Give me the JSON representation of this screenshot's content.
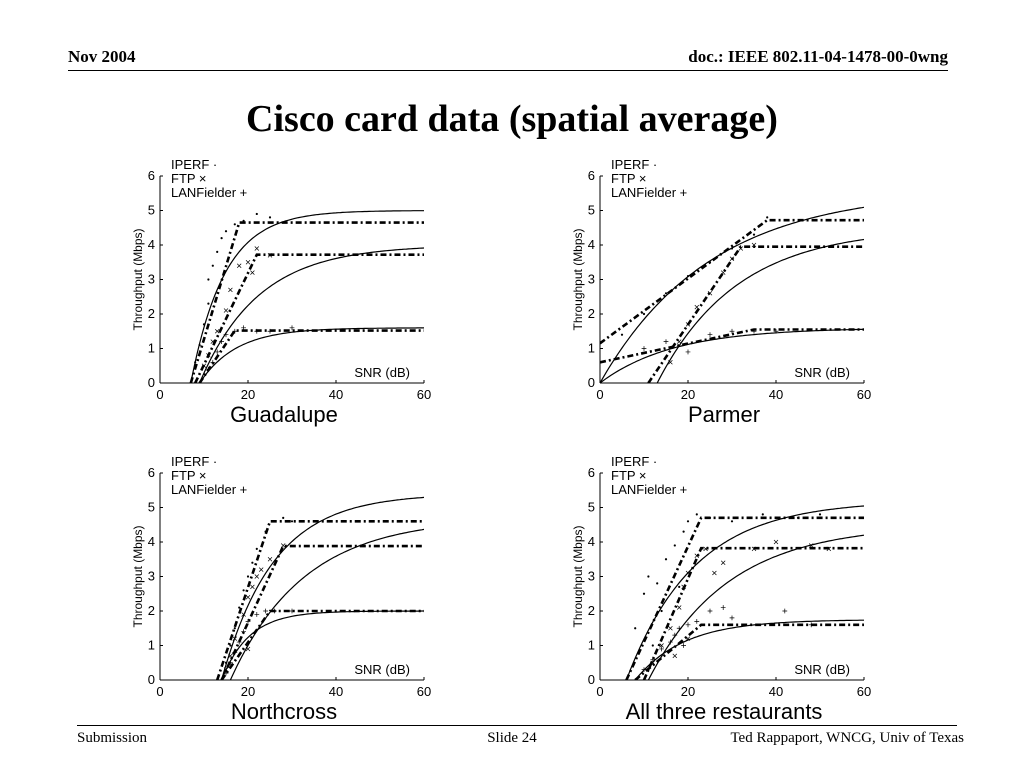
{
  "header": {
    "date": "Nov 2004",
    "doc": "doc.: IEEE 802.11-04-1478-00-0wng"
  },
  "title": "Cisco card data (spatial average)",
  "footer": {
    "left": "Submission",
    "center": "Slide 24",
    "right": "Ted Rappaport, WNCG, Univ of Texas"
  },
  "chart_data": [
    {
      "type": "scatter",
      "caption": "Guadalupe",
      "ylabel": "Throughput (Mbps)",
      "xlabel_inside": "SNR (dB)",
      "xlim": [
        0,
        60
      ],
      "ylim": [
        0,
        6
      ],
      "xticks": [
        "0",
        "20",
        "40",
        "60"
      ],
      "yticks": [
        "0",
        "1",
        "2",
        "3",
        "4",
        "5",
        "6"
      ],
      "legend": [
        "IPERF ·",
        "FTP ×",
        "LANFielder +"
      ],
      "series": [
        {
          "marker": "dot",
          "points": [
            [
              8,
              0.6
            ],
            [
              9,
              1.1
            ],
            [
              10,
              1.7
            ],
            [
              11,
              2.3
            ],
            [
              11,
              3
            ],
            [
              12,
              3.4
            ],
            [
              13,
              3.8
            ],
            [
              14,
              4.2
            ],
            [
              15,
              4.4
            ],
            [
              17,
              4.6
            ],
            [
              19,
              4.7
            ],
            [
              22,
              4.9
            ],
            [
              25,
              4.8
            ]
          ],
          "fit_exp": {
            "a": 5.0,
            "x0": 7,
            "k": 0.13
          },
          "piecewise": [
            [
              7,
              0
            ],
            [
              18,
              4.65
            ],
            [
              60,
              4.65
            ]
          ]
        },
        {
          "marker": "x",
          "points": [
            [
              10,
              0.5
            ],
            [
              11,
              0.8
            ],
            [
              12,
              1.2
            ],
            [
              13,
              1.5
            ],
            [
              15,
              2.1
            ],
            [
              16,
              2.7
            ],
            [
              18,
              3.4
            ],
            [
              20,
              3.5
            ],
            [
              21,
              3.2
            ],
            [
              22,
              3.9
            ],
            [
              25,
              3.7
            ]
          ],
          "fit_exp": {
            "a": 4.0,
            "x0": 9,
            "k": 0.075
          },
          "piecewise": [
            [
              8,
              0
            ],
            [
              22,
              3.72
            ],
            [
              60,
              3.72
            ]
          ]
        },
        {
          "marker": "plus",
          "points": [
            [
              11,
              0.4
            ],
            [
              12,
              0.6
            ],
            [
              13,
              0.9
            ],
            [
              14,
              1.2
            ],
            [
              15,
              1.4
            ],
            [
              17,
              1.5
            ],
            [
              19,
              1.6
            ],
            [
              22,
              1.5
            ],
            [
              25,
              1.5
            ],
            [
              30,
              1.6
            ]
          ],
          "fit_exp": {
            "a": 1.6,
            "x0": 9,
            "k": 0.12
          },
          "piecewise": [
            [
              9,
              0
            ],
            [
              17,
              1.52
            ],
            [
              60,
              1.52
            ]
          ]
        }
      ]
    },
    {
      "type": "scatter",
      "caption": "Parmer",
      "ylabel": "Throughput (Mbps)",
      "xlabel_inside": "SNR (dB)",
      "xlim": [
        0,
        60
      ],
      "ylim": [
        0,
        6
      ],
      "xticks": [
        "0",
        "20",
        "40",
        "60"
      ],
      "yticks": [
        "0",
        "1",
        "2",
        "3",
        "4",
        "5",
        "6"
      ],
      "legend": [
        "IPERF ·",
        "FTP ×",
        "LANFielder +"
      ],
      "series": [
        {
          "marker": "dot",
          "points": [
            [
              5,
              1.4
            ],
            [
              10,
              2
            ],
            [
              15,
              2.6
            ],
            [
              20,
              3.1
            ],
            [
              25,
              3.5
            ],
            [
              30,
              3.9
            ],
            [
              35,
              4.3
            ],
            [
              38,
              4.8
            ]
          ],
          "fit_exp": {
            "a": 5.6,
            "x0": 0,
            "k": 0.04
          },
          "piecewise": [
            [
              0,
              1.15
            ],
            [
              38,
              4.72
            ],
            [
              60,
              4.72
            ]
          ]
        },
        {
          "marker": "x",
          "points": [
            [
              16,
              0.6
            ],
            [
              18,
              1.2
            ],
            [
              20,
              1.7
            ],
            [
              22,
              2.2
            ],
            [
              25,
              2.6
            ],
            [
              28,
              3.2
            ],
            [
              30,
              3.6
            ],
            [
              32,
              3.9
            ],
            [
              35,
              4.0
            ]
          ],
          "fit_exp": {
            "a": 4.5,
            "x0": 13,
            "k": 0.055
          },
          "piecewise": [
            [
              11,
              0
            ],
            [
              32,
              3.95
            ],
            [
              60,
              3.95
            ]
          ]
        },
        {
          "marker": "plus",
          "points": [
            [
              10,
              1.0
            ],
            [
              15,
              1.2
            ],
            [
              20,
              0.9
            ],
            [
              25,
              1.4
            ],
            [
              30,
              1.5
            ],
            [
              35,
              1.5
            ],
            [
              40,
              1.5
            ]
          ],
          "fit_exp": {
            "a": 1.6,
            "x0": 0,
            "k": 0.06
          },
          "piecewise": [
            [
              0,
              0.6
            ],
            [
              35,
              1.55
            ],
            [
              60,
              1.55
            ]
          ]
        }
      ]
    },
    {
      "type": "scatter",
      "caption": "Northcross",
      "ylabel": "Throughput (Mbps)",
      "xlabel_inside": "SNR (dB)",
      "xlim": [
        0,
        60
      ],
      "ylim": [
        0,
        6
      ],
      "xticks": [
        "0",
        "20",
        "40",
        "60"
      ],
      "yticks": [
        "0",
        "1",
        "2",
        "3",
        "4",
        "5",
        "6"
      ],
      "legend": [
        "IPERF ·",
        "FTP ×",
        "LANFielder +"
      ],
      "series": [
        {
          "marker": "dot",
          "points": [
            [
              15,
              0.5
            ],
            [
              16,
              1.0
            ],
            [
              17,
              1.5
            ],
            [
              18,
              2.1
            ],
            [
              19,
              2.6
            ],
            [
              20,
              3.0
            ],
            [
              21,
              3.4
            ],
            [
              22,
              3.8
            ],
            [
              24,
              4.3
            ],
            [
              26,
              4.6
            ],
            [
              28,
              4.7
            ],
            [
              30,
              4.6
            ]
          ],
          "fit_exp": {
            "a": 5.4,
            "x0": 14,
            "k": 0.085
          },
          "piecewise": [
            [
              13,
              0
            ],
            [
              25,
              4.6
            ],
            [
              60,
              4.6
            ]
          ]
        },
        {
          "marker": "x",
          "points": [
            [
              15,
              0.3
            ],
            [
              16,
              0.7
            ],
            [
              17,
              1.2
            ],
            [
              19,
              1.9
            ],
            [
              20,
              2.4
            ],
            [
              21,
              2.7
            ],
            [
              22,
              3.0
            ],
            [
              23,
              3.2
            ],
            [
              25,
              3.5
            ],
            [
              28,
              3.9
            ],
            [
              20,
              0.9
            ]
          ],
          "fit_exp": {
            "a": 4.7,
            "x0": 16,
            "k": 0.06
          },
          "piecewise": [
            [
              14,
              0
            ],
            [
              28,
              3.88
            ],
            [
              60,
              3.88
            ]
          ]
        },
        {
          "marker": "plus",
          "points": [
            [
              15,
              0.2
            ],
            [
              16,
              0.5
            ],
            [
              17,
              0.8
            ],
            [
              18,
              1.1
            ],
            [
              19,
              1.4
            ],
            [
              20,
              1.7
            ],
            [
              22,
              1.9
            ],
            [
              24,
              2.0
            ],
            [
              26,
              2.0
            ],
            [
              30,
              2.0
            ]
          ],
          "fit_exp": {
            "a": 2.0,
            "x0": 14,
            "k": 0.16
          },
          "piecewise": [
            [
              14,
              0
            ],
            [
              25,
              2.0
            ],
            [
              60,
              2.0
            ]
          ]
        }
      ]
    },
    {
      "type": "scatter",
      "caption": "All three restaurants",
      "ylabel": "Throughput (Mbps)",
      "xlabel_inside": "SNR (dB)",
      "xlim": [
        0,
        60
      ],
      "ylim": [
        0,
        6
      ],
      "xticks": [
        "0",
        "20",
        "40",
        "60"
      ],
      "yticks": [
        "0",
        "1",
        "2",
        "3",
        "4",
        "5",
        "6"
      ],
      "legend": [
        "IPERF ·",
        "FTP ×",
        "LANFielder +"
      ],
      "series": [
        {
          "marker": "dot",
          "points": [
            [
              8,
              1.5
            ],
            [
              10,
              2.5
            ],
            [
              11,
              3.0
            ],
            [
              13,
              2.8
            ],
            [
              15,
              3.5
            ],
            [
              17,
              3.9
            ],
            [
              19,
              4.3
            ],
            [
              20,
              4.6
            ],
            [
              22,
              4.8
            ],
            [
              25,
              4.7
            ],
            [
              30,
              4.6
            ],
            [
              37,
              4.8
            ],
            [
              45,
              4.7
            ],
            [
              50,
              4.8
            ],
            [
              14,
              2.0
            ],
            [
              18,
              2.7
            ],
            [
              12,
              1.0
            ]
          ],
          "fit_exp": {
            "a": 5.2,
            "x0": 6,
            "k": 0.065
          },
          "piecewise": [
            [
              6,
              0
            ],
            [
              23,
              4.7
            ],
            [
              60,
              4.7
            ]
          ]
        },
        {
          "marker": "x",
          "points": [
            [
              12,
              0.5
            ],
            [
              14,
              1.0
            ],
            [
              16,
              1.5
            ],
            [
              18,
              2.1
            ],
            [
              19,
              2.7
            ],
            [
              20,
              3.1
            ],
            [
              22,
              3.6
            ],
            [
              24,
              3.8
            ],
            [
              26,
              3.1
            ],
            [
              28,
              3.4
            ],
            [
              35,
              3.8
            ],
            [
              40,
              4.0
            ],
            [
              48,
              3.9
            ],
            [
              52,
              3.8
            ],
            [
              17,
              0.7
            ],
            [
              20,
              1.2
            ]
          ],
          "fit_exp": {
            "a": 4.5,
            "x0": 11,
            "k": 0.055
          },
          "piecewise": [
            [
              10,
              0
            ],
            [
              23,
              3.82
            ],
            [
              60,
              3.82
            ]
          ]
        },
        {
          "marker": "plus",
          "points": [
            [
              10,
              0.3
            ],
            [
              12,
              0.6
            ],
            [
              14,
              0.9
            ],
            [
              16,
              1.1
            ],
            [
              17,
              1.3
            ],
            [
              18,
              1.5
            ],
            [
              20,
              1.6
            ],
            [
              22,
              1.7
            ],
            [
              25,
              2.0
            ],
            [
              28,
              2.1
            ],
            [
              30,
              1.8
            ],
            [
              42,
              2.0
            ],
            [
              48,
              1.6
            ],
            [
              19,
              1.0
            ]
          ],
          "fit_exp": {
            "a": 1.75,
            "x0": 8,
            "k": 0.09
          },
          "piecewise": [
            [
              8,
              0
            ],
            [
              23,
              1.6
            ],
            [
              60,
              1.6
            ]
          ]
        }
      ]
    }
  ]
}
